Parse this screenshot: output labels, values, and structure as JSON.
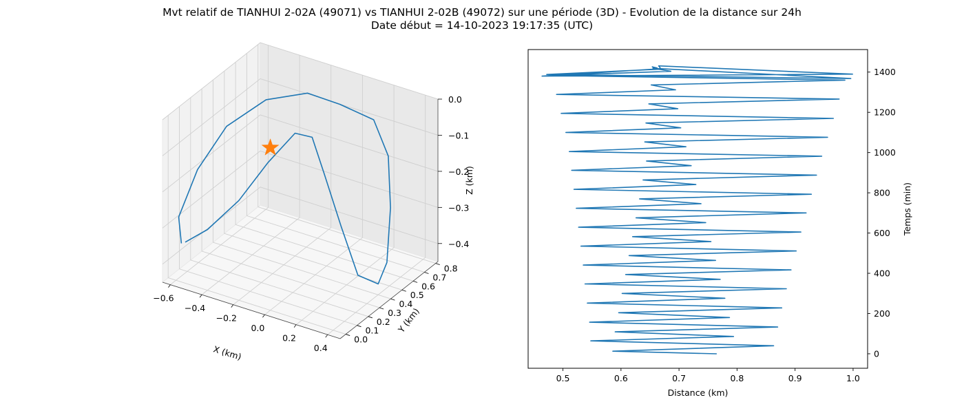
{
  "figure": {
    "title_line1": "Mvt relatif de TIANHUI 2-02A (49071) vs TIANHUI 2-02B (49072) sur une période (3D) - Evolution de la distance sur 24h",
    "title_line2": "Date début = 14-10-2023 19:17:35 (UTC)"
  },
  "colors": {
    "series": "#1f77b4",
    "marker": "#ff7f0e",
    "pane_left": "#f2f2f2",
    "pane_right": "#e9e9e9",
    "pane_floor": "#f7f7f7",
    "grid": "#cfcfcf"
  },
  "chart_data": [
    {
      "type": "line3d",
      "xlabel": "X (km)",
      "ylabel": "Y (km)",
      "zlabel": "Z (km)",
      "xlim": [
        -0.65,
        0.48
      ],
      "ylim": [
        -0.05,
        0.82
      ],
      "zlim": [
        -0.45,
        0.0
      ],
      "xticks": [
        -0.6,
        -0.4,
        -0.2,
        0.0,
        0.2,
        0.4
      ],
      "xtick_labels": [
        "−0.6",
        "−0.4",
        "−0.2",
        "0.0",
        "0.2",
        "0.4"
      ],
      "yticks": [
        0.0,
        0.1,
        0.2,
        0.3,
        0.4,
        0.5,
        0.6,
        0.7,
        0.8
      ],
      "ytick_labels": [
        "0.0",
        "0.1",
        "0.2",
        "0.3",
        "0.4",
        "0.5",
        "0.6",
        "0.7",
        "0.8"
      ],
      "zticks": [
        0.0,
        -0.1,
        -0.2,
        -0.3,
        -0.4
      ],
      "ztick_labels": [
        "0.0",
        "−0.1",
        "−0.2",
        "−0.3",
        "−0.4"
      ],
      "grid": true,
      "series": [
        {
          "points": [
            [
              -0.58,
              0.02,
              -0.35
            ],
            [
              -0.64,
              0.08,
              -0.3
            ],
            [
              -0.62,
              0.22,
              -0.2
            ],
            [
              -0.55,
              0.38,
              -0.11
            ],
            [
              -0.42,
              0.55,
              -0.06
            ],
            [
              -0.25,
              0.68,
              -0.05
            ],
            [
              -0.1,
              0.76,
              -0.08
            ],
            [
              0.1,
              0.78,
              -0.1
            ],
            [
              0.25,
              0.7,
              -0.16
            ],
            [
              0.35,
              0.58,
              -0.26
            ],
            [
              0.42,
              0.45,
              -0.37
            ],
            [
              0.4,
              0.4,
              -0.42
            ],
            [
              0.3,
              0.36,
              -0.4
            ],
            [
              0.15,
              0.42,
              -0.3
            ],
            [
              0.0,
              0.48,
              -0.19
            ],
            [
              -0.12,
              0.54,
              -0.12
            ],
            [
              -0.2,
              0.5,
              -0.11
            ],
            [
              -0.3,
              0.4,
              -0.18
            ],
            [
              -0.4,
              0.28,
              -0.27
            ],
            [
              -0.5,
              0.14,
              -0.33
            ],
            [
              -0.57,
              0.04,
              -0.35
            ]
          ]
        }
      ],
      "marker": {
        "symbol": "star",
        "point": [
          0.0,
          0.0,
          0.0
        ]
      }
    },
    {
      "type": "line",
      "xlabel": "Distance (km)",
      "ylabel": "Temps (min)",
      "xlim": [
        0.44,
        1.025
      ],
      "ylim": [
        -72,
        1512
      ],
      "xticks": [
        0.5,
        0.6,
        0.7,
        0.8,
        0.9,
        1.0
      ],
      "xtick_labels": [
        "0.5",
        "0.6",
        "0.7",
        "0.8",
        "0.9",
        "1.0"
      ],
      "yticks": [
        0,
        200,
        400,
        600,
        800,
        1000,
        1200,
        1400
      ],
      "ytick_labels": [
        "0",
        "200",
        "400",
        "600",
        "800",
        "1000",
        "1200",
        "1400"
      ],
      "yaxis_side": "right",
      "grid": false,
      "series": [
        {
          "x": [
            0.765,
            0.586,
            0.863,
            0.548,
            0.794,
            0.59,
            0.87,
            0.546,
            0.787,
            0.596,
            0.877,
            0.542,
            0.779,
            0.602,
            0.885,
            0.538,
            0.771,
            0.608,
            0.893,
            0.535,
            0.763,
            0.614,
            0.902,
            0.531,
            0.755,
            0.62,
            0.91,
            0.527,
            0.746,
            0.626,
            0.919,
            0.523,
            0.738,
            0.632,
            0.928,
            0.519,
            0.729,
            0.638,
            0.937,
            0.515,
            0.721,
            0.644,
            0.946,
            0.511,
            0.712,
            0.641,
            0.956,
            0.505,
            0.703,
            0.643,
            0.966,
            0.497,
            0.698,
            0.648,
            0.976,
            0.489,
            0.694,
            0.652,
            0.986,
            0.48,
            0.686,
            0.655,
            0.996,
            0.472,
            0.669,
            0.665,
            0.999,
            0.464,
            0.664,
            0.654,
            0.663
          ],
          "y": [
            0,
            13,
            40,
            64,
            86,
            109,
            133,
            157,
            180,
            204,
            228,
            252,
            276,
            300,
            323,
            347,
            370,
            394,
            417,
            441,
            464,
            488,
            511,
            535,
            558,
            582,
            605,
            629,
            652,
            676,
            700,
            723,
            746,
            770,
            793,
            817,
            841,
            864,
            888,
            912,
            935,
            958,
            982,
            1005,
            1029,
            1053,
            1076,
            1100,
            1123,
            1147,
            1170,
            1195,
            1218,
            1242,
            1266,
            1289,
            1312,
            1336,
            1360,
            1383,
            1404,
            1419,
            1368,
            1388,
            1415,
            1431,
            1390,
            1380,
            1416,
            1426,
            1420
          ]
        }
      ]
    }
  ]
}
